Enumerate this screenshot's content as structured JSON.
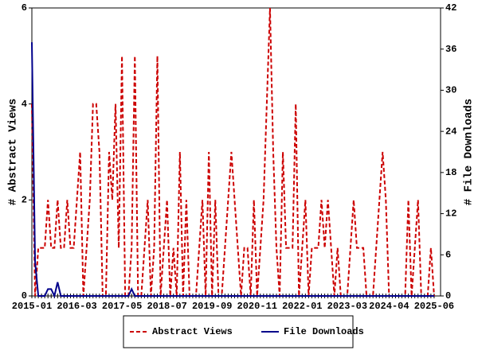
{
  "chart_data": {
    "type": "line",
    "y_label": "# Abstract Views",
    "y2_label": "# File Downloads",
    "categories": [
      "2015-01",
      null,
      null,
      null,
      null,
      null,
      null,
      null,
      null,
      null,
      null,
      null,
      null,
      null,
      "2016-03",
      null,
      null,
      null,
      null,
      null,
      null,
      null,
      null,
      null,
      null,
      null,
      null,
      null,
      "2017-05",
      null,
      null,
      null,
      null,
      null,
      null,
      null,
      null,
      null,
      null,
      null,
      null,
      null,
      "2018-07",
      null,
      null,
      null,
      null,
      null,
      null,
      null,
      null,
      null,
      null,
      null,
      null,
      null,
      "2019-09",
      null,
      null,
      null,
      null,
      null,
      null,
      null,
      null,
      null,
      null,
      null,
      null,
      null,
      "2020-11",
      null,
      null,
      null,
      null,
      null,
      null,
      null,
      null,
      null,
      null,
      null,
      null,
      null,
      "2022-01",
      null,
      null,
      null,
      null,
      null,
      null,
      null,
      null,
      null,
      null,
      null,
      null,
      null,
      "2023-03",
      null,
      null,
      null,
      null,
      null,
      null,
      null,
      null,
      null,
      null,
      null,
      null,
      "2024-04",
      null,
      null,
      null,
      null,
      null,
      null,
      null,
      null,
      null,
      null,
      null,
      null,
      null,
      "2025-06"
    ],
    "series": [
      {
        "name": "Abstract Views",
        "color": "#cc0000",
        "dash": true,
        "values": [
          4,
          0,
          1,
          1,
          1,
          2,
          1,
          1,
          2,
          1,
          1,
          2,
          1,
          1,
          2,
          3,
          0,
          1,
          2,
          4,
          4,
          3,
          0,
          0,
          3,
          2,
          4,
          1,
          5,
          0,
          0,
          1,
          5,
          0,
          0,
          1,
          2,
          0,
          1,
          5,
          0,
          1,
          2,
          0,
          1,
          0,
          3,
          0,
          2,
          0,
          0,
          0,
          1,
          2,
          0,
          3,
          0,
          2,
          0,
          0,
          1,
          2,
          3,
          2,
          1,
          0,
          1,
          1,
          0,
          2,
          0,
          1,
          2,
          4,
          6,
          3,
          1,
          0,
          3,
          1,
          1,
          1,
          4,
          0,
          1,
          2,
          0,
          1,
          1,
          1,
          2,
          1,
          2,
          1,
          0,
          1,
          0,
          0,
          0,
          1,
          2,
          1,
          1,
          1,
          0,
          0,
          0,
          1,
          2,
          3,
          2,
          0,
          0,
          0,
          0,
          0,
          0,
          2,
          0,
          1,
          2,
          0,
          0,
          0,
          1,
          0
        ]
      },
      {
        "name": "File Downloads",
        "color": "#00008b",
        "dash": false,
        "axis": "y2",
        "values": [
          37,
          5,
          0,
          0,
          0,
          1,
          1,
          0,
          2,
          0,
          0,
          0,
          0,
          0,
          0,
          0,
          0,
          0,
          0,
          0,
          0,
          0,
          0,
          0,
          0,
          0,
          0,
          0,
          0,
          0,
          0,
          1,
          0,
          0,
          0,
          0,
          0,
          0,
          0,
          0,
          0,
          0,
          0,
          0,
          0,
          0,
          0,
          0,
          0,
          0,
          0,
          0,
          0,
          0,
          0,
          0,
          0,
          0,
          0,
          0,
          0,
          0,
          0,
          0,
          0,
          0,
          0,
          0,
          0,
          0,
          0,
          0,
          0,
          0,
          0,
          0,
          0,
          0,
          0,
          0,
          0,
          0,
          0,
          0,
          0,
          0,
          0,
          0,
          0,
          0,
          0,
          0,
          0,
          0,
          0,
          0,
          0,
          0,
          0,
          0,
          0,
          0,
          0,
          0,
          0,
          0,
          0,
          0,
          0,
          0,
          0,
          0,
          0,
          0,
          0,
          0,
          0,
          0,
          0,
          0,
          0,
          0,
          0,
          0,
          0,
          0
        ]
      }
    ],
    "ylim": [
      0,
      6
    ],
    "yticks": [
      0,
      2,
      4,
      6
    ],
    "y2lim": [
      0,
      42
    ],
    "y2ticks": [
      0,
      6,
      12,
      18,
      24,
      30,
      36,
      42
    ],
    "legend": "bottom"
  }
}
